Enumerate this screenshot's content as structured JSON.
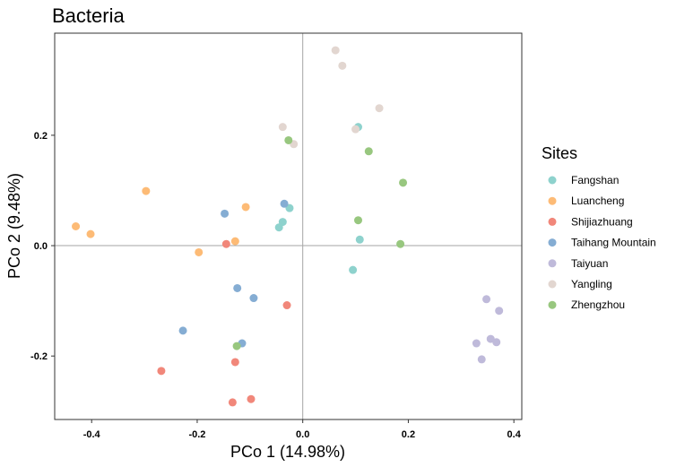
{
  "chart_data": {
    "type": "scatter",
    "title": "Bacteria",
    "xlabel": "PCo 1 (14.98%)",
    "ylabel": "PCo 2 (9.48%)",
    "xlim": [
      -0.47,
      0.415
    ],
    "ylim": [
      -0.315,
      0.385
    ],
    "xticks": [
      -0.4,
      -0.2,
      0.0,
      0.2,
      0.4
    ],
    "xtick_labels": [
      "-0.4",
      "-0.2",
      "0.0",
      "0.2",
      "0.4"
    ],
    "yticks": [
      -0.2,
      0.0,
      0.2
    ],
    "ytick_labels": [
      "-0.2",
      "0.0",
      "0.2"
    ],
    "reference_lines": {
      "x": 0,
      "y": 0
    },
    "grid": false,
    "legend_title": "Sites",
    "legend_position": "right",
    "series": [
      {
        "name": "Fangshan",
        "color": "#8ED2CD",
        "points": [
          [
            -0.045,
            0.033
          ],
          [
            -0.038,
            0.043
          ],
          [
            -0.025,
            0.068
          ],
          [
            0.105,
            0.215
          ],
          [
            0.108,
            0.011
          ],
          [
            0.095,
            -0.044
          ]
        ]
      },
      {
        "name": "Luancheng",
        "color": "#FDBB76",
        "points": [
          [
            -0.43,
            0.035
          ],
          [
            -0.402,
            0.021
          ],
          [
            -0.297,
            0.099
          ],
          [
            -0.197,
            -0.012
          ],
          [
            -0.128,
            0.008
          ],
          [
            -0.108,
            0.07
          ]
        ]
      },
      {
        "name": "Shijiazhuang",
        "color": "#F1877A",
        "points": [
          [
            -0.145,
            0.003
          ],
          [
            -0.03,
            -0.108
          ],
          [
            -0.268,
            -0.227
          ],
          [
            -0.128,
            -0.211
          ],
          [
            -0.098,
            -0.278
          ],
          [
            -0.133,
            -0.284
          ]
        ]
      },
      {
        "name": "Taihang Mountain",
        "color": "#85ADD3",
        "points": [
          [
            -0.148,
            0.058
          ],
          [
            -0.035,
            0.076
          ],
          [
            -0.124,
            -0.077
          ],
          [
            -0.093,
            -0.095
          ],
          [
            -0.227,
            -0.154
          ],
          [
            -0.115,
            -0.177
          ]
        ]
      },
      {
        "name": "Taiyuan",
        "color": "#BFBADA",
        "points": [
          [
            0.348,
            -0.097
          ],
          [
            0.372,
            -0.118
          ],
          [
            0.356,
            -0.169
          ],
          [
            0.367,
            -0.175
          ],
          [
            0.329,
            -0.177
          ],
          [
            0.339,
            -0.206
          ]
        ]
      },
      {
        "name": "Yangling",
        "color": "#E2D6D0",
        "points": [
          [
            0.062,
            0.354
          ],
          [
            0.075,
            0.326
          ],
          [
            0.145,
            0.249
          ],
          [
            0.1,
            0.211
          ],
          [
            -0.038,
            0.215
          ],
          [
            -0.017,
            0.184
          ]
        ]
      },
      {
        "name": "Zhengzhou",
        "color": "#98C77F",
        "points": [
          [
            -0.027,
            0.191
          ],
          [
            0.125,
            0.171
          ],
          [
            0.19,
            0.114
          ],
          [
            0.105,
            0.046
          ],
          [
            0.185,
            0.003
          ],
          [
            -0.125,
            -0.182
          ]
        ]
      }
    ]
  }
}
